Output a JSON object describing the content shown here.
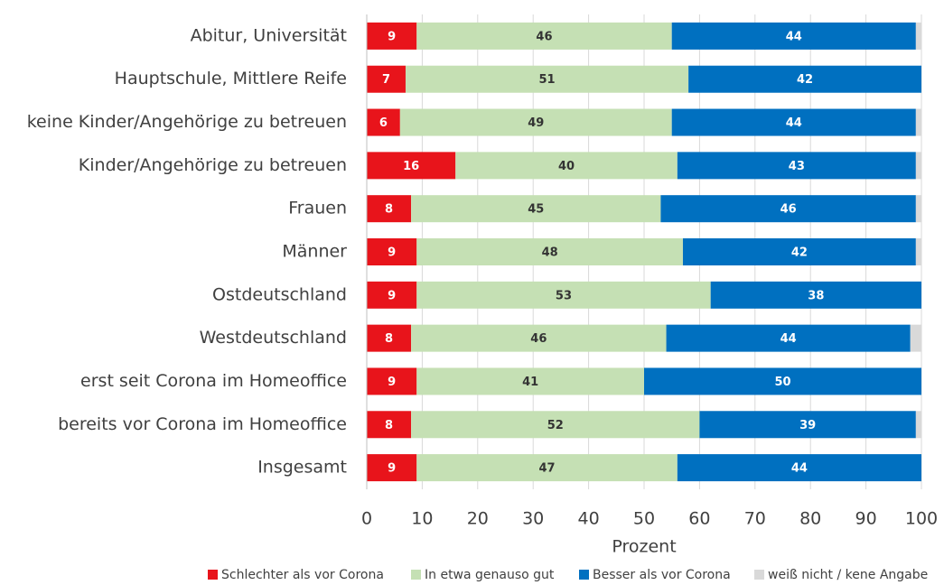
{
  "chart_data": {
    "type": "stacked_bar_horizontal",
    "categories": [
      "Abitur, Universität",
      "Hauptschule, Mittlere Reife",
      "keine Kinder/Angehörige zu betreuen",
      "Kinder/Angehörige zu betreuen",
      "Frauen",
      "Männer",
      "Ostdeutschland",
      "Westdeutschland",
      "erst seit Corona im Homeoffice",
      "bereits vor Corona im Homeoffice",
      "Insgesamt"
    ],
    "series": [
      {
        "name": "Schlechter als vor Corona",
        "color": "#e8141b",
        "values": [
          9,
          7,
          6,
          16,
          8,
          9,
          9,
          8,
          9,
          8,
          9
        ],
        "show_labels": true
      },
      {
        "name": "In etwa genauso gut",
        "color": "#c5e0b4",
        "values": [
          46,
          51,
          49,
          40,
          45,
          48,
          53,
          46,
          41,
          52,
          47
        ],
        "show_labels": true
      },
      {
        "name": "Besser als vor Corona",
        "color": "#0070c0",
        "values": [
          44,
          42,
          44,
          43,
          46,
          42,
          38,
          44,
          50,
          39,
          44
        ],
        "show_labels": true
      },
      {
        "name": "weiß nicht / kene Angabe",
        "color": "#d9d9d9",
        "values": [
          1,
          0,
          1,
          1,
          1,
          1,
          0,
          2,
          0,
          1,
          0
        ],
        "show_labels": false
      }
    ],
    "xlabel": "Prozent",
    "xlim": [
      0,
      100
    ],
    "xticks": [
      0,
      10,
      20,
      30,
      40,
      50,
      60,
      70,
      80,
      90,
      100
    ],
    "legend": "bottom"
  }
}
